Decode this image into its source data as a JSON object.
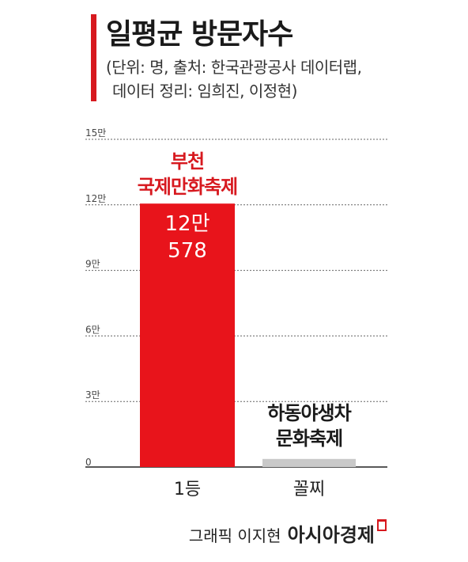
{
  "title": "일평균 방문자수",
  "subtitle_lines": [
    "(단위: 명, 출처: 한국관광공사 데이터랩,",
    "데이터 정리: 임희진, 이정현)"
  ],
  "credit": {
    "text": "그래픽 이지현",
    "brand": "아시아경제"
  },
  "colors": {
    "accent": "#d7191f",
    "bar_primary": "#e8141b",
    "bar_secondary": "#c9c9c9",
    "grid": "#666666"
  },
  "chart_data": {
    "type": "bar",
    "categories": [
      "1등",
      "꼴찌"
    ],
    "values": [
      120578,
      3700
    ],
    "ylim": [
      0,
      150000
    ],
    "yticks": [
      0,
      30000,
      60000,
      90000,
      120000,
      150000
    ],
    "ytick_labels": [
      "0",
      "3만",
      "6만",
      "9만",
      "12만",
      "15만"
    ],
    "grid": true,
    "bar_names": [
      [
        "부천",
        "국제만화축제"
      ],
      [
        "하동야생차",
        "문화축제"
      ]
    ],
    "value_labels": [
      [
        "12만",
        "578"
      ],
      null
    ]
  }
}
